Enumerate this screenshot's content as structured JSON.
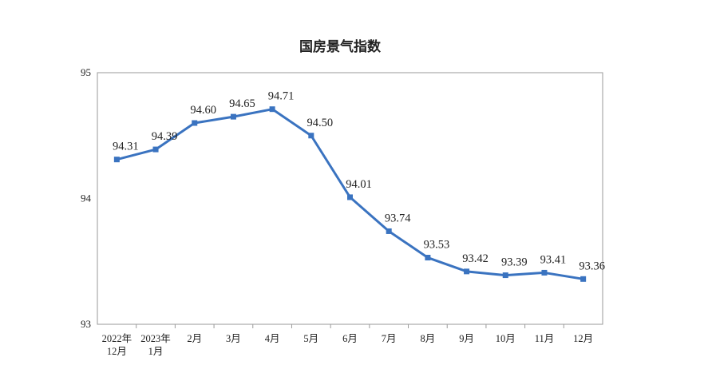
{
  "chart_data": {
    "type": "line",
    "title": "国房景气指数",
    "categories": [
      [
        "2022年",
        "12月"
      ],
      [
        "2023年",
        "1月"
      ],
      [
        "2月"
      ],
      [
        "3月"
      ],
      [
        "4月"
      ],
      [
        "5月"
      ],
      [
        "6月"
      ],
      [
        "7月"
      ],
      [
        "8月"
      ],
      [
        "9月"
      ],
      [
        "10月"
      ],
      [
        "11月"
      ],
      [
        "12月"
      ]
    ],
    "values": [
      94.31,
      94.39,
      94.6,
      94.65,
      94.71,
      94.5,
      94.01,
      93.74,
      93.53,
      93.42,
      93.39,
      93.41,
      93.36
    ],
    "data_labels": [
      "94.31",
      "94.39",
      "94.60",
      "94.65",
      "94.71",
      "94.50",
      "94.01",
      "93.74",
      "93.53",
      "93.42",
      "93.39",
      "93.41",
      "93.36"
    ],
    "ylim": [
      93,
      95
    ],
    "yticks": [
      "93",
      "94",
      "95"
    ],
    "xlabel": "",
    "ylabel": "",
    "grid": false,
    "line_color": "#3a73c0"
  }
}
